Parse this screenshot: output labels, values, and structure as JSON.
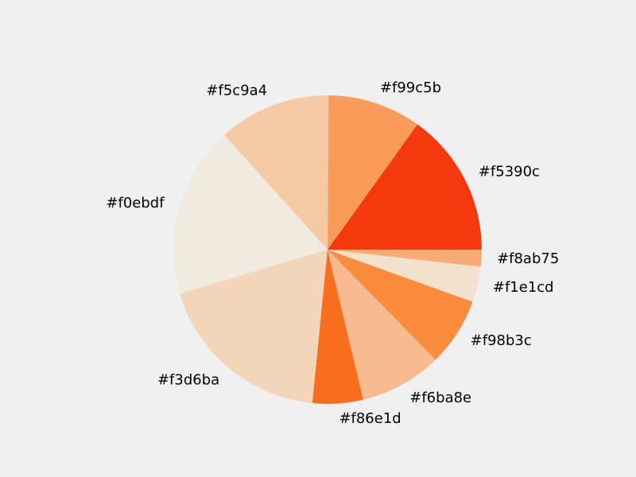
{
  "chart_data": {
    "type": "pie",
    "start_angle_deg": 0,
    "direction": "counterclockwise",
    "slices": [
      {
        "label": "#f5390c",
        "value": 15.4,
        "color": "#f5390c"
      },
      {
        "label": "#f99c5b",
        "value": 10.0,
        "color": "#f99c5b"
      },
      {
        "label": "#f5c9a4",
        "value": 12.0,
        "color": "#f5c9a4"
      },
      {
        "label": "#f0ebdf",
        "value": 18.3,
        "color": "#f0ebdf"
      },
      {
        "label": "#f3d6ba",
        "value": 19.2,
        "color": "#f3d6ba"
      },
      {
        "label": "#f86e1d",
        "value": 5.4,
        "color": "#f86e1d"
      },
      {
        "label": "#f6ba8e",
        "value": 8.8,
        "color": "#f6ba8e"
      },
      {
        "label": "#f98b3c",
        "value": 7.3,
        "color": "#f98b3c"
      },
      {
        "label": "#f1e1cd",
        "value": 3.8,
        "color": "#f1e1cd"
      },
      {
        "label": "#f8ab75",
        "value": 1.8,
        "color": "#f8ab75"
      }
    ]
  }
}
